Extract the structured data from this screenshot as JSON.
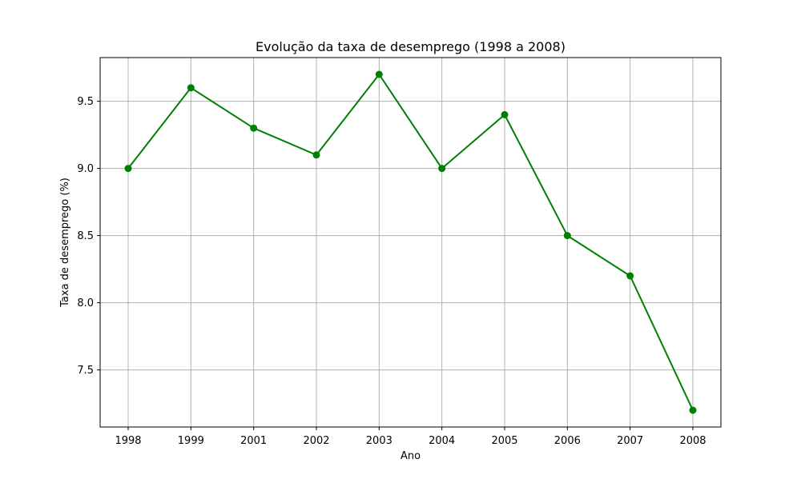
{
  "chart_data": {
    "type": "line",
    "title": "Evolução da taxa de desemprego (1998 a 2008)",
    "xlabel": "Ano",
    "ylabel": "Taxa de desemprego (%)",
    "categories": [
      "1998",
      "1999",
      "2001",
      "2002",
      "2003",
      "2004",
      "2005",
      "2006",
      "2007",
      "2008"
    ],
    "series": [
      {
        "values": [
          9.0,
          9.6,
          9.3,
          9.1,
          9.7,
          9.0,
          9.4,
          8.5,
          8.2,
          7.2
        ],
        "color": "#008000",
        "marker": "circle"
      }
    ],
    "ylim": [
      7.075,
      9.825
    ],
    "yticks": [
      7.5,
      8.0,
      8.5,
      9.0,
      9.5
    ],
    "ytick_labels": [
      "7.5",
      "8.0",
      "8.5",
      "9.0",
      "9.5"
    ],
    "grid": true,
    "legend": false
  }
}
